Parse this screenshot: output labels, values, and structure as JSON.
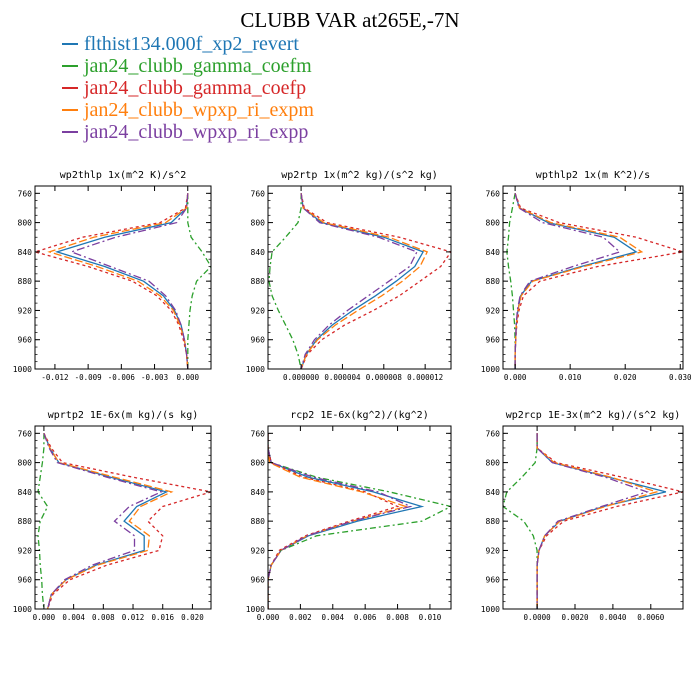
{
  "title": "CLUBB VAR at265E,-7N",
  "legend": [
    {
      "label": "flthist134.000f_xp2_revert",
      "color": "#1f77b4",
      "dash": ""
    },
    {
      "label": "jan24_clubb_gamma_coefm",
      "color": "#2ca02c",
      "dash": "6,3,2,3"
    },
    {
      "label": "jan24_clubb_gamma_coefp",
      "color": "#d62728",
      "dash": "3,3"
    },
    {
      "label": "jan24_clubb_wpxp_ri_expm",
      "color": "#ff7f0e",
      "dash": "8,3"
    },
    {
      "label": "jan24_clubb_wpxp_ri_expp",
      "color": "#7b3fa0",
      "dash": "8,3,2,3"
    }
  ],
  "chart_data": [
    {
      "type": "line",
      "title": "wp2thlp  1x(m^2 K)/s^2",
      "xlim": [
        -0.0138,
        0.0021
      ],
      "ylim": [
        1000,
        750
      ],
      "xticks": [
        -0.012,
        -0.009,
        -0.006,
        -0.003,
        0.0
      ],
      "xtick_labels": [
        "-0.012",
        "-0.009",
        "-0.006",
        "-0.003",
        "0.000"
      ],
      "yticks": [
        760,
        800,
        840,
        880,
        920,
        960,
        1000
      ],
      "y": [
        760,
        780,
        800,
        820,
        840,
        860,
        880,
        900,
        920,
        940,
        960,
        980,
        1000
      ],
      "series": [
        {
          "name": "flthist134.000f_xp2_revert",
          "values": [
            0.0,
            -0.0001,
            -0.0015,
            -0.0075,
            -0.0118,
            -0.0075,
            -0.004,
            -0.0022,
            -0.0012,
            -0.0006,
            -0.0003,
            -0.0001,
            0.0
          ]
        },
        {
          "name": "jan24_clubb_gamma_coefm",
          "values": [
            0.0,
            0.0,
            0.0,
            0.0003,
            0.0013,
            0.0021,
            0.0008,
            0.0004,
            0.0002,
            0.0001,
            0.0,
            0.0,
            0.0
          ]
        },
        {
          "name": "jan24_clubb_gamma_coefp",
          "values": [
            0.0,
            -0.0002,
            -0.0025,
            -0.0095,
            -0.0138,
            -0.009,
            -0.005,
            -0.0028,
            -0.0015,
            -0.0008,
            -0.0004,
            -0.0001,
            0.0
          ]
        },
        {
          "name": "jan24_clubb_wpxp_ri_expm",
          "values": [
            0.0,
            -0.0001,
            -0.002,
            -0.0085,
            -0.0125,
            -0.0082,
            -0.0045,
            -0.0025,
            -0.0013,
            -0.0007,
            -0.0003,
            -0.0001,
            0.0
          ]
        },
        {
          "name": "jan24_clubb_wpxp_ri_expp",
          "values": [
            0.0,
            -0.0001,
            -0.001,
            -0.0065,
            -0.0105,
            -0.007,
            -0.0035,
            -0.002,
            -0.0011,
            -0.0006,
            -0.0003,
            -0.0001,
            0.0
          ]
        }
      ]
    },
    {
      "type": "line",
      "title": "wp2rtp  1x(m^2 kg)/(s^2 kg)",
      "xlim": [
        -3.2e-06,
        1.45e-05
      ],
      "ylim": [
        1000,
        750
      ],
      "xticks": [
        0.0,
        4e-06,
        8e-06,
        1.2e-05
      ],
      "xtick_labels": [
        "0.000000",
        "0.000004",
        "0.000008",
        "0.000012"
      ],
      "yticks": [
        760,
        800,
        840,
        880,
        920,
        960,
        1000
      ],
      "y": [
        760,
        780,
        800,
        820,
        840,
        860,
        880,
        900,
        920,
        940,
        960,
        980,
        1000
      ],
      "series": [
        {
          "name": "flthist134.000f_xp2_revert",
          "values": [
            0.0,
            2e-07,
            2e-06,
            8e-06,
            1.18e-05,
            1.1e-05,
            9.2e-06,
            7.2e-06,
            5e-06,
            3e-06,
            1.5e-06,
            5e-07,
            0.0
          ]
        },
        {
          "name": "jan24_clubb_gamma_coefm",
          "values": [
            0.0,
            0.0,
            -3e-07,
            -1.5e-06,
            -2.8e-06,
            -3e-06,
            -3.1e-06,
            -2.8e-06,
            -2.2e-06,
            -1.5e-06,
            -8e-07,
            -3e-07,
            0.0
          ]
        },
        {
          "name": "jan24_clubb_gamma_coefp",
          "values": [
            0.0,
            3e-07,
            2.5e-06,
            9.5e-06,
            1.45e-05,
            1.35e-05,
            1.15e-05,
            9.5e-06,
            7e-06,
            4.2e-06,
            2e-06,
            6e-07,
            0.0
          ]
        },
        {
          "name": "jan24_clubb_wpxp_ri_expm",
          "values": [
            0.0,
            2e-07,
            2.2e-06,
            8.5e-06,
            1.22e-05,
            1.15e-05,
            9.8e-06,
            7.8e-06,
            5.5e-06,
            3.3e-06,
            1.6e-06,
            5e-07,
            0.0
          ]
        },
        {
          "name": "jan24_clubb_wpxp_ri_expp",
          "values": [
            0.0,
            2e-07,
            1.8e-06,
            7.5e-06,
            1.12e-05,
            1.05e-05,
            8.5e-06,
            6.5e-06,
            4.5e-06,
            2.7e-06,
            1.3e-06,
            4e-07,
            0.0
          ]
        }
      ]
    },
    {
      "type": "line",
      "title": "wpthlp2  1x(m K^2)/s",
      "xlim": [
        -0.0022,
        0.0305
      ],
      "ylim": [
        1000,
        750
      ],
      "xticks": [
        0.0,
        0.01,
        0.02,
        0.03
      ],
      "xtick_labels": [
        "0.000",
        "0.010",
        "0.020",
        "0.030"
      ],
      "yticks": [
        760,
        800,
        840,
        880,
        920,
        960,
        1000
      ],
      "y": [
        760,
        780,
        800,
        820,
        840,
        860,
        880,
        900,
        920,
        940,
        960,
        980,
        1000
      ],
      "series": [
        {
          "name": "flthist134.000f_xp2_revert",
          "values": [
            0.0,
            0.0008,
            0.006,
            0.018,
            0.022,
            0.012,
            0.003,
            0.001,
            0.0005,
            0.0002,
            0.0001,
            0.0,
            0.0
          ]
        },
        {
          "name": "jan24_clubb_gamma_coefm",
          "values": [
            0.0,
            -0.0005,
            -0.001,
            -0.0012,
            -0.0015,
            -0.0012,
            -0.0008,
            -0.0005,
            -0.0003,
            -0.0001,
            0.0,
            0.0,
            0.0
          ]
        },
        {
          "name": "jan24_clubb_gamma_coefp",
          "values": [
            0.0,
            0.001,
            0.008,
            0.022,
            0.0305,
            0.015,
            0.0045,
            0.0015,
            0.0007,
            0.0003,
            0.0001,
            0.0,
            0.0
          ]
        },
        {
          "name": "jan24_clubb_wpxp_ri_expm",
          "values": [
            0.0,
            0.0008,
            0.0065,
            0.019,
            0.023,
            0.0125,
            0.0032,
            0.0011,
            0.0005,
            0.0002,
            0.0001,
            0.0,
            0.0
          ]
        },
        {
          "name": "jan24_clubb_wpxp_ri_expp",
          "values": [
            0.0,
            0.0007,
            0.005,
            0.016,
            0.019,
            0.0105,
            0.0027,
            0.0009,
            0.0004,
            0.0002,
            0.0001,
            0.0,
            0.0
          ]
        }
      ]
    },
    {
      "type": "line",
      "title": "wprtp2  1E-6x(m kg)/(s kg)",
      "xlim": [
        -0.0012,
        0.0225
      ],
      "ylim": [
        1000,
        750
      ],
      "xticks": [
        0.0,
        0.004,
        0.008,
        0.012,
        0.016,
        0.02
      ],
      "xtick_labels": [
        "0.000",
        "0.004",
        "0.008",
        "0.012",
        "0.016",
        "0.020"
      ],
      "yticks": [
        760,
        800,
        840,
        880,
        920,
        960,
        1000
      ],
      "y": [
        760,
        780,
        800,
        820,
        840,
        860,
        880,
        900,
        920,
        940,
        960,
        980,
        1000
      ],
      "series": [
        {
          "name": "flthist134.000f_xp2_revert",
          "values": [
            0.0,
            0.0008,
            0.002,
            0.009,
            0.0165,
            0.0125,
            0.0108,
            0.0135,
            0.0135,
            0.007,
            0.003,
            0.001,
            0.0005
          ]
        },
        {
          "name": "jan24_clubb_gamma_coefm",
          "values": [
            0.0,
            0.0,
            -0.0002,
            -0.0005,
            -0.0008,
            0.0005,
            -0.0005,
            -0.0008,
            -0.0006,
            -0.0005,
            -0.0003,
            -0.0002,
            0.0
          ]
        },
        {
          "name": "jan24_clubb_gamma_coefp",
          "values": [
            0.0,
            0.001,
            0.0025,
            0.012,
            0.0225,
            0.016,
            0.014,
            0.016,
            0.0155,
            0.0085,
            0.0035,
            0.0012,
            0.0005
          ]
        },
        {
          "name": "jan24_clubb_wpxp_ri_expm",
          "values": [
            0.0,
            0.0008,
            0.002,
            0.0095,
            0.0172,
            0.013,
            0.0115,
            0.0142,
            0.014,
            0.0072,
            0.003,
            0.001,
            0.0005
          ]
        },
        {
          "name": "jan24_clubb_wpxp_ri_expp",
          "values": [
            0.0,
            0.0007,
            0.0018,
            0.0085,
            0.0158,
            0.0115,
            0.0095,
            0.0122,
            0.0122,
            0.0065,
            0.0028,
            0.001,
            0.0005
          ]
        }
      ]
    },
    {
      "type": "line",
      "title": "rcp2  1E-6x(kg^2)/(kg^2)",
      "xlim": [
        0.0,
        0.0113
      ],
      "ylim": [
        1000,
        750
      ],
      "xticks": [
        0.0,
        0.002,
        0.004,
        0.006,
        0.008,
        0.01
      ],
      "xtick_labels": [
        "0.000",
        "0.002",
        "0.004",
        "0.006",
        "0.008",
        "0.010"
      ],
      "yticks": [
        760,
        800,
        840,
        880,
        920,
        960,
        1000
      ],
      "y": [
        760,
        780,
        800,
        820,
        840,
        860,
        880,
        900,
        920,
        940,
        960,
        980,
        1000
      ],
      "series": [
        {
          "name": "flthist134.000f_xp2_revert",
          "values": [
            0.0,
            0.0,
            0.0002,
            0.0025,
            0.0065,
            0.0095,
            0.0055,
            0.0025,
            0.0008,
            0.0002,
            0.0,
            0.0,
            0.0
          ]
        },
        {
          "name": "jan24_clubb_gamma_coefm",
          "values": [
            0.0,
            0.0,
            0.0002,
            0.003,
            0.0075,
            0.0113,
            0.0095,
            0.003,
            0.0008,
            0.0002,
            0.0,
            0.0,
            0.0
          ]
        },
        {
          "name": "jan24_clubb_gamma_coefp",
          "values": [
            0.0,
            0.0,
            0.0002,
            0.0022,
            0.006,
            0.008,
            0.005,
            0.0023,
            0.0007,
            0.0002,
            0.0,
            0.0,
            0.0
          ]
        },
        {
          "name": "jan24_clubb_wpxp_ri_expm",
          "values": [
            0.0,
            0.0,
            0.0001,
            0.002,
            0.0058,
            0.0085,
            0.0052,
            0.0024,
            0.0008,
            0.0002,
            0.0,
            0.0,
            0.0
          ]
        },
        {
          "name": "jan24_clubb_wpxp_ri_expp",
          "values": [
            0.0,
            0.0,
            0.0002,
            0.0028,
            0.0068,
            0.0088,
            0.0052,
            0.0024,
            0.0008,
            0.0002,
            0.0,
            0.0,
            0.0
          ]
        }
      ]
    },
    {
      "type": "line",
      "title": "wp2rcp  1E-3x(m^2 kg)/(s^2 kg)",
      "xlim": [
        -0.0018,
        0.0077
      ],
      "ylim": [
        1000,
        750
      ],
      "xticks": [
        0.0,
        0.002,
        0.004,
        0.006
      ],
      "xtick_labels": [
        "0.0000",
        "0.0020",
        "0.0040",
        "0.0060"
      ],
      "yticks": [
        760,
        800,
        840,
        880,
        920,
        960,
        1000
      ],
      "y": [
        760,
        780,
        800,
        820,
        840,
        860,
        880,
        900,
        920,
        940,
        960,
        980,
        1000
      ],
      "series": [
        {
          "name": "flthist134.000f_xp2_revert",
          "values": [
            0.0,
            0.0,
            0.0008,
            0.0038,
            0.0068,
            0.0035,
            0.0012,
            0.0004,
            0.0001,
            0.0,
            0.0,
            0.0,
            0.0
          ]
        },
        {
          "name": "jan24_clubb_gamma_coefm",
          "values": [
            0.0,
            0.0,
            -0.0001,
            -0.0008,
            -0.0016,
            -0.0018,
            -0.0007,
            -0.0002,
            0.0,
            0.0,
            0.0,
            0.0,
            0.0
          ]
        },
        {
          "name": "jan24_clubb_gamma_coefp",
          "values": [
            0.0,
            0.0,
            0.001,
            0.0045,
            0.0077,
            0.0042,
            0.0014,
            0.0005,
            0.0001,
            0.0,
            0.0,
            0.0,
            0.0
          ]
        },
        {
          "name": "jan24_clubb_wpxp_ri_expm",
          "values": [
            0.0,
            0.0,
            0.0009,
            0.0039,
            0.0063,
            0.0036,
            0.0012,
            0.0004,
            0.0001,
            0.0,
            0.0,
            0.0,
            0.0
          ]
        },
        {
          "name": "jan24_clubb_wpxp_ri_expp",
          "values": [
            0.0,
            0.0,
            0.0008,
            0.0036,
            0.0058,
            0.0034,
            0.0011,
            0.0004,
            0.0001,
            0.0,
            0.0,
            0.0,
            0.0
          ]
        }
      ]
    }
  ]
}
